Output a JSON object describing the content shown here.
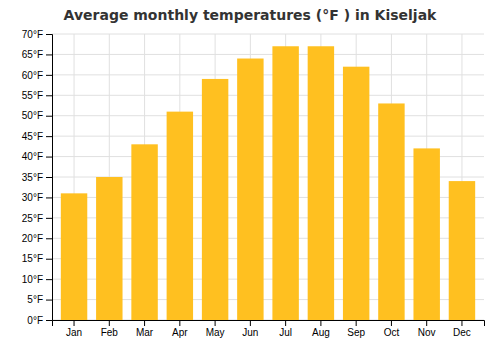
{
  "chart_data": {
    "type": "bar",
    "title": "Average monthly temperatures (°F ) in Kiseljak",
    "categories": [
      "Jan",
      "Feb",
      "Mar",
      "Apr",
      "May",
      "Jun",
      "Jul",
      "Aug",
      "Sep",
      "Oct",
      "Nov",
      "Dec"
    ],
    "values": [
      31,
      35,
      43,
      51,
      59,
      64,
      67,
      67,
      62,
      53,
      42,
      34
    ],
    "color": "#FFC020",
    "ylim": [
      0,
      70
    ],
    "yticks": [
      {
        "value": 0,
        "label": "0°F"
      },
      {
        "value": 5,
        "label": "5°F"
      },
      {
        "value": 10,
        "label": "10°F"
      },
      {
        "value": 15,
        "label": "15°F"
      },
      {
        "value": 20,
        "label": "20°F"
      },
      {
        "value": 25,
        "label": "25°F"
      },
      {
        "value": 30,
        "label": "30°F"
      },
      {
        "value": 35,
        "label": "35°F"
      },
      {
        "value": 40,
        "label": "40°F"
      },
      {
        "value": 45,
        "label": "45°F"
      },
      {
        "value": 50,
        "label": "50°F"
      },
      {
        "value": 55,
        "label": "55°F"
      },
      {
        "value": 60,
        "label": "60°F"
      },
      {
        "value": 65,
        "label": "65°F"
      },
      {
        "value": 70,
        "label": "70°F"
      }
    ],
    "grid": true
  }
}
